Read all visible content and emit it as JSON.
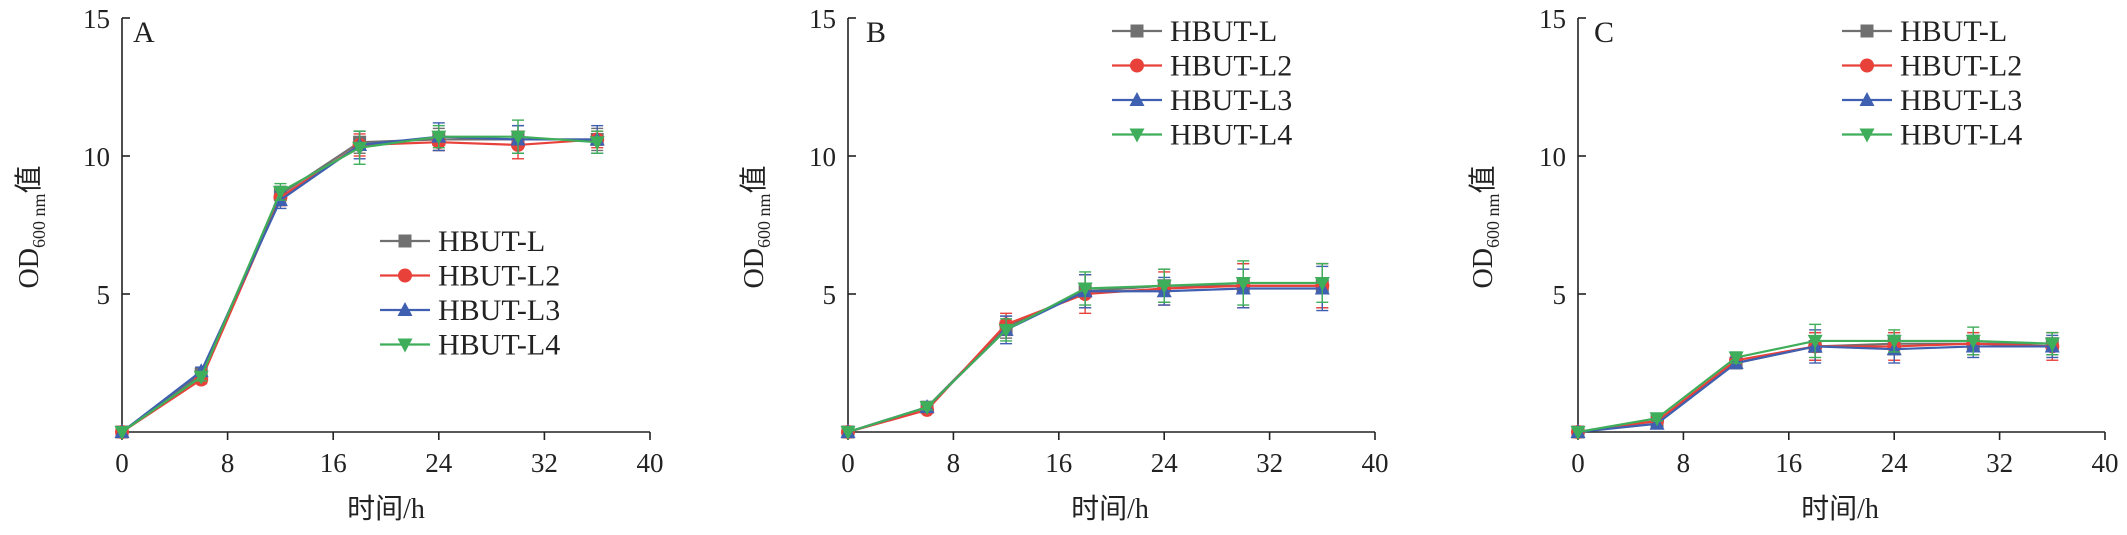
{
  "chart_data": [
    {
      "type": "line",
      "panel_label": "A",
      "x": [
        0,
        6,
        12,
        18,
        24,
        30,
        36
      ],
      "xlim": [
        0,
        40
      ],
      "ylim": [
        0,
        15
      ],
      "xticks": [
        0,
        8,
        16,
        24,
        32,
        40
      ],
      "yticks": [
        5,
        10,
        15
      ],
      "xlabel": "时间/h",
      "ylabel": {
        "main": "OD",
        "sub": "600 nm",
        "suffix": "值"
      },
      "legend_position": "lower-right",
      "error_bars": true,
      "series": [
        {
          "name": "HBUT-L",
          "color": "#707070",
          "marker": "square",
          "values": [
            0,
            2.1,
            8.6,
            10.5,
            10.6,
            10.6,
            10.6
          ],
          "errors": [
            0.05,
            0.15,
            0.3,
            0.4,
            0.4,
            0.5,
            0.4
          ]
        },
        {
          "name": "HBUT-L2",
          "color": "#e8413a",
          "marker": "circle",
          "values": [
            0,
            1.9,
            8.5,
            10.4,
            10.5,
            10.4,
            10.6
          ],
          "errors": [
            0.05,
            0.15,
            0.3,
            0.4,
            0.3,
            0.5,
            0.3
          ]
        },
        {
          "name": "HBUT-L3",
          "color": "#3f5fb0",
          "marker": "triangle-up",
          "values": [
            0,
            2.2,
            8.4,
            10.4,
            10.7,
            10.6,
            10.6
          ],
          "errors": [
            0.05,
            0.15,
            0.3,
            0.5,
            0.5,
            0.5,
            0.5
          ]
        },
        {
          "name": "HBUT-L4",
          "color": "#3fae5a",
          "marker": "triangle-down",
          "values": [
            0,
            2.0,
            8.7,
            10.3,
            10.7,
            10.7,
            10.5
          ],
          "errors": [
            0.05,
            0.15,
            0.3,
            0.6,
            0.4,
            0.6,
            0.4
          ]
        }
      ]
    },
    {
      "type": "line",
      "panel_label": "B",
      "x": [
        0,
        6,
        12,
        18,
        24,
        30,
        36
      ],
      "xlim": [
        0,
        40
      ],
      "ylim": [
        0,
        15
      ],
      "xticks": [
        0,
        8,
        16,
        24,
        32,
        40
      ],
      "yticks": [
        5,
        10,
        15
      ],
      "xlabel": "时间/h",
      "ylabel": {
        "main": "OD",
        "sub": "600 nm",
        "suffix": "值"
      },
      "legend_position": "top-right",
      "error_bars": true,
      "series": [
        {
          "name": "HBUT-L",
          "color": "#707070",
          "marker": "square",
          "values": [
            0,
            0.9,
            3.8,
            5.1,
            5.3,
            5.3,
            5.3
          ],
          "errors": [
            0.05,
            0.1,
            0.4,
            0.6,
            0.6,
            0.8,
            0.8
          ]
        },
        {
          "name": "HBUT-L2",
          "color": "#e8413a",
          "marker": "circle",
          "values": [
            0,
            0.8,
            3.9,
            5.0,
            5.2,
            5.3,
            5.3
          ],
          "errors": [
            0.05,
            0.1,
            0.4,
            0.7,
            0.6,
            0.8,
            0.8
          ]
        },
        {
          "name": "HBUT-L3",
          "color": "#3f5fb0",
          "marker": "triangle-up",
          "values": [
            0,
            0.9,
            3.7,
            5.1,
            5.1,
            5.2,
            5.2
          ],
          "errors": [
            0.05,
            0.1,
            0.5,
            0.6,
            0.5,
            0.7,
            0.8
          ]
        },
        {
          "name": "HBUT-L4",
          "color": "#3fae5a",
          "marker": "triangle-down",
          "values": [
            0,
            0.9,
            3.7,
            5.2,
            5.3,
            5.4,
            5.4
          ],
          "errors": [
            0.05,
            0.1,
            0.4,
            0.6,
            0.6,
            0.8,
            0.7
          ]
        }
      ]
    },
    {
      "type": "line",
      "panel_label": "C",
      "x": [
        0,
        6,
        12,
        18,
        24,
        30,
        36
      ],
      "xlim": [
        0,
        40
      ],
      "ylim": [
        0,
        15
      ],
      "xticks": [
        0,
        8,
        16,
        24,
        32,
        40
      ],
      "yticks": [
        5,
        10,
        15
      ],
      "xlabel": "时间/h",
      "ylabel": {
        "main": "OD",
        "sub": "600 nm",
        "suffix": "值"
      },
      "legend_position": "top-right",
      "error_bars": true,
      "series": [
        {
          "name": "HBUT-L",
          "color": "#707070",
          "marker": "square",
          "values": [
            0,
            0.4,
            2.5,
            3.1,
            3.2,
            3.2,
            3.2
          ],
          "errors": [
            0.05,
            0.1,
            0.2,
            0.5,
            0.4,
            0.4,
            0.4
          ]
        },
        {
          "name": "HBUT-L2",
          "color": "#e8413a",
          "marker": "circle",
          "values": [
            0,
            0.4,
            2.6,
            3.1,
            3.1,
            3.2,
            3.1
          ],
          "errors": [
            0.05,
            0.1,
            0.2,
            0.5,
            0.5,
            0.4,
            0.5
          ]
        },
        {
          "name": "HBUT-L3",
          "color": "#3f5fb0",
          "marker": "triangle-up",
          "values": [
            0,
            0.3,
            2.5,
            3.1,
            3.0,
            3.1,
            3.1
          ],
          "errors": [
            0.05,
            0.1,
            0.2,
            0.6,
            0.5,
            0.4,
            0.4
          ]
        },
        {
          "name": "HBUT-L4",
          "color": "#3fae5a",
          "marker": "triangle-down",
          "values": [
            0,
            0.5,
            2.7,
            3.3,
            3.3,
            3.3,
            3.2
          ],
          "errors": [
            0.05,
            0.1,
            0.2,
            0.6,
            0.4,
            0.5,
            0.4
          ]
        }
      ]
    }
  ]
}
